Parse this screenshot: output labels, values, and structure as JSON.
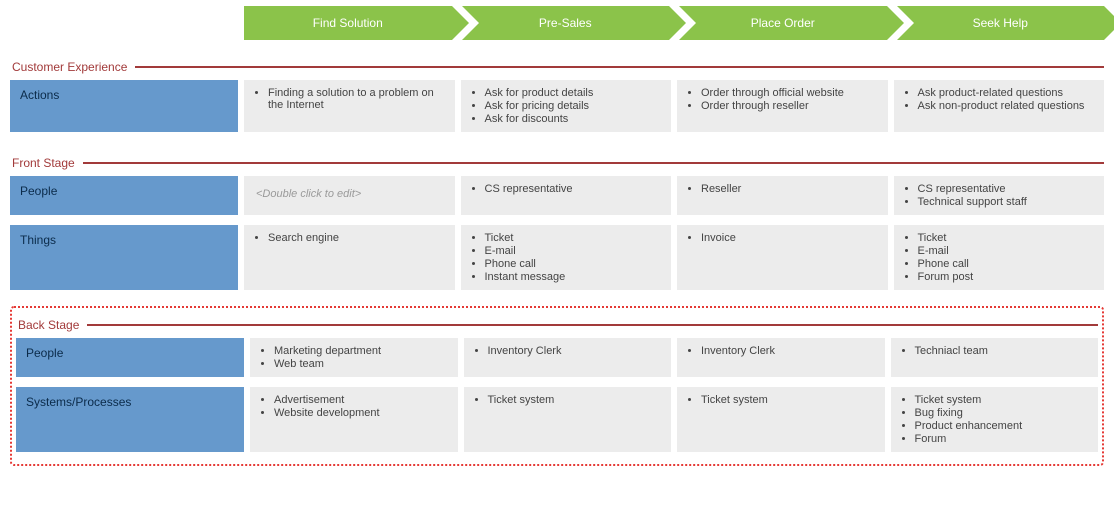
{
  "stages": [
    "Find Solution",
    "Pre-Sales",
    "Place Order",
    "Seek Help"
  ],
  "colors": {
    "chevron_bg": "#8bc34a",
    "chevron_text": "#ffffff",
    "section_title": "#a23a3a",
    "row_label_bg": "#6699cc",
    "row_label_text": "#0b2b4a",
    "cell_bg": "#ececec",
    "placeholder_text": "#9a9a9a",
    "selection_border": "#e53935"
  },
  "sections": [
    {
      "title": "Customer Experience",
      "rows": [
        {
          "label": "Actions",
          "cells": [
            {
              "items": [
                "Finding a solution to a problem on the Internet"
              ]
            },
            {
              "items": [
                "Ask for product details",
                "Ask for pricing details",
                "Ask for discounts"
              ]
            },
            {
              "items": [
                "Order through official website",
                "Order through reseller"
              ]
            },
            {
              "items": [
                "Ask product-related questions",
                "Ask non-product related questions"
              ]
            }
          ]
        }
      ]
    },
    {
      "title": "Front Stage",
      "rows": [
        {
          "label": "People",
          "cells": [
            {
              "placeholder": "<Double click to edit>"
            },
            {
              "items": [
                "CS representative"
              ]
            },
            {
              "items": [
                "Reseller"
              ]
            },
            {
              "items": [
                "CS representative",
                "Technical support staff"
              ]
            }
          ]
        },
        {
          "label": "Things",
          "cells": [
            {
              "items": [
                "Search engine"
              ]
            },
            {
              "items": [
                "Ticket",
                "E-mail",
                "Phone call",
                "Instant message"
              ]
            },
            {
              "items": [
                "Invoice"
              ]
            },
            {
              "items": [
                "Ticket",
                "E-mail",
                "Phone call",
                "Forum post"
              ]
            }
          ]
        }
      ]
    },
    {
      "title": "Back Stage",
      "selected": true,
      "rows": [
        {
          "label": "People",
          "cells": [
            {
              "items": [
                "Marketing department",
                "Web team"
              ]
            },
            {
              "items": [
                "Inventory Clerk"
              ]
            },
            {
              "items": [
                "Inventory Clerk"
              ]
            },
            {
              "items": [
                "Techniacl team"
              ]
            }
          ]
        },
        {
          "label": "Systems/Processes",
          "cells": [
            {
              "items": [
                "Advertisement",
                "Website development"
              ]
            },
            {
              "items": [
                "Ticket system"
              ]
            },
            {
              "items": [
                "Ticket system"
              ]
            },
            {
              "items": [
                "Ticket system",
                "Bug fixing",
                "Product enhancement",
                "Forum"
              ]
            }
          ]
        }
      ]
    }
  ]
}
